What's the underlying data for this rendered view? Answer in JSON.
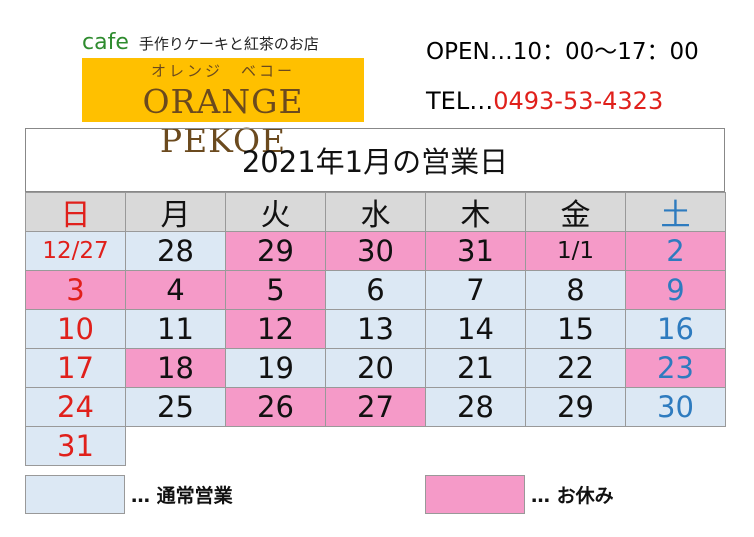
{
  "header": {
    "cafe": "cafe",
    "tagline": "手作りケーキと紅茶のお店",
    "logo_kana": "オレンジ　ベコー",
    "logo_name": "ORANGE PEKOE",
    "open": "OPEN…10：00〜17：00",
    "tel_label": "TEL…",
    "tel_number": "0493-53-4323"
  },
  "calendar": {
    "title": "2021年1月の営業日",
    "weekdays": [
      "日",
      "月",
      "火",
      "水",
      "木",
      "金",
      "土"
    ],
    "weeks": [
      [
        {
          "d": "12/27",
          "s": "open"
        },
        {
          "d": "28",
          "s": "open"
        },
        {
          "d": "29",
          "s": "closed"
        },
        {
          "d": "30",
          "s": "closed"
        },
        {
          "d": "31",
          "s": "closed"
        },
        {
          "d": "1/1",
          "s": "closed"
        },
        {
          "d": "2",
          "s": "closed"
        }
      ],
      [
        {
          "d": "3",
          "s": "closed"
        },
        {
          "d": "4",
          "s": "closed"
        },
        {
          "d": "5",
          "s": "closed"
        },
        {
          "d": "6",
          "s": "open"
        },
        {
          "d": "7",
          "s": "open"
        },
        {
          "d": "8",
          "s": "open"
        },
        {
          "d": "9",
          "s": "closed"
        }
      ],
      [
        {
          "d": "10",
          "s": "open"
        },
        {
          "d": "11",
          "s": "open"
        },
        {
          "d": "12",
          "s": "closed"
        },
        {
          "d": "13",
          "s": "open"
        },
        {
          "d": "14",
          "s": "open"
        },
        {
          "d": "15",
          "s": "open"
        },
        {
          "d": "16",
          "s": "open"
        }
      ],
      [
        {
          "d": "17",
          "s": "open"
        },
        {
          "d": "18",
          "s": "closed"
        },
        {
          "d": "19",
          "s": "open"
        },
        {
          "d": "20",
          "s": "open"
        },
        {
          "d": "21",
          "s": "open"
        },
        {
          "d": "22",
          "s": "open"
        },
        {
          "d": "23",
          "s": "closed"
        }
      ],
      [
        {
          "d": "24",
          "s": "open"
        },
        {
          "d": "25",
          "s": "open"
        },
        {
          "d": "26",
          "s": "closed"
        },
        {
          "d": "27",
          "s": "closed"
        },
        {
          "d": "28",
          "s": "open"
        },
        {
          "d": "29",
          "s": "open"
        },
        {
          "d": "30",
          "s": "open"
        }
      ],
      [
        {
          "d": "31",
          "s": "open"
        },
        {
          "d": "",
          "s": "none"
        },
        {
          "d": "",
          "s": "none"
        },
        {
          "d": "",
          "s": "none"
        },
        {
          "d": "",
          "s": "none"
        },
        {
          "d": "",
          "s": "none"
        },
        {
          "d": "",
          "s": "none"
        }
      ]
    ]
  },
  "legend": {
    "open_label": "… 通常営業",
    "closed_label": "… お休み"
  },
  "colors": {
    "open": "#dce8f4",
    "closed": "#f59ac8",
    "header_bg": "#d9d9d9",
    "sunday": "#e0201b",
    "saturday": "#2e7bbf",
    "logo_bg": "#ffc000"
  }
}
